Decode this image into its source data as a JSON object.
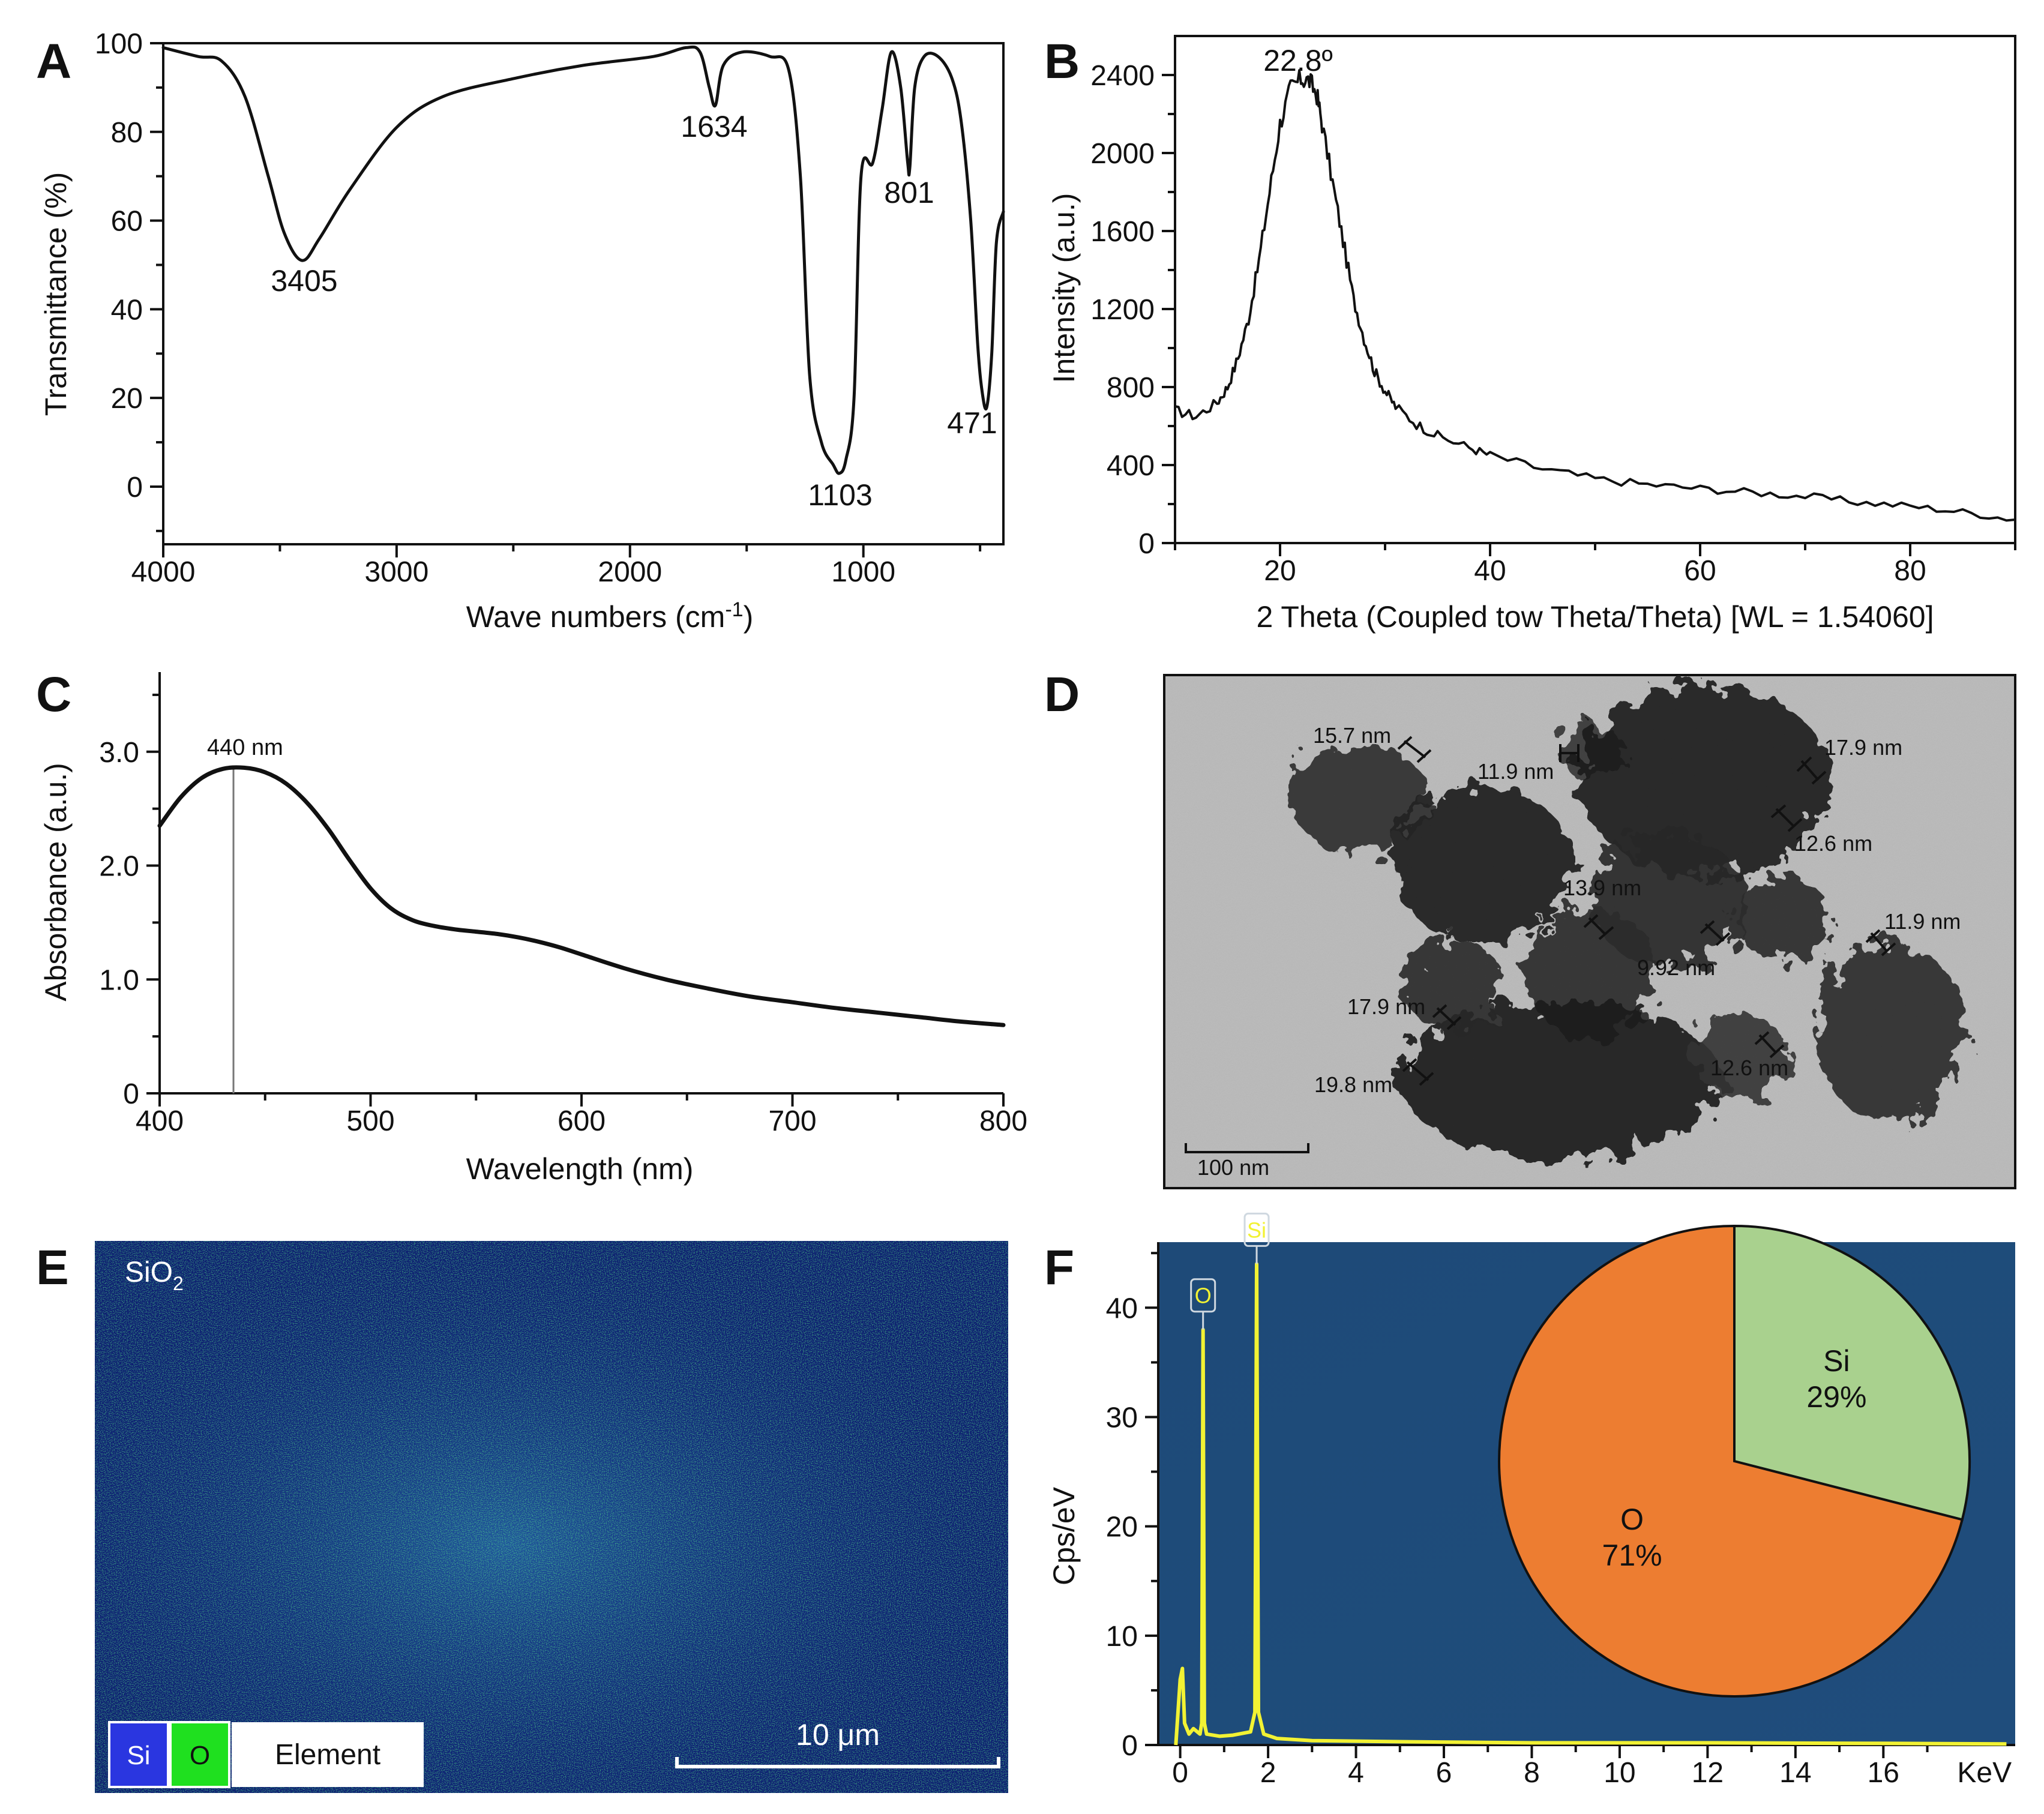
{
  "colors": {
    "ink": "#111111",
    "eds_bg": "#1e4a78",
    "eds_line": "#f2f233",
    "pie_o": "#ed7d31",
    "pie_si": "#a9d18e",
    "map_si": "#2a36e0",
    "map_o": "#1fe01f"
  },
  "panels": {
    "a": "A",
    "b": "B",
    "c": "C",
    "d": "D",
    "e": "E",
    "f": "F"
  },
  "chart_data": [
    {
      "id": "A",
      "type": "line",
      "title": "",
      "xlabel": "Wave numbers (cm⁻¹)",
      "ylabel": "Transmittance (%)",
      "xlim": [
        4000,
        400
      ],
      "ylim": [
        -13,
        100
      ],
      "xticks": [
        "4000",
        "3000",
        "2000",
        "1000"
      ],
      "yticks": [
        "100",
        "80",
        "60",
        "40",
        "20",
        "0"
      ],
      "x": [
        4000,
        3850,
        3750,
        3650,
        3550,
        3480,
        3405,
        3330,
        3200,
        3000,
        2800,
        2500,
        2200,
        1900,
        1760,
        1700,
        1660,
        1634,
        1600,
        1520,
        1400,
        1320,
        1270,
        1230,
        1180,
        1130,
        1103,
        1075,
        1040,
        1010,
        960,
        920,
        880,
        840,
        810,
        801,
        780,
        740,
        680,
        620,
        580,
        540,
        510,
        490,
        471,
        450,
        430,
        400
      ],
      "y": [
        99,
        97,
        96,
        88,
        70,
        57,
        51,
        56,
        67,
        81,
        88,
        92,
        95,
        97,
        99,
        98,
        90,
        86,
        95,
        98,
        97,
        94,
        70,
        25,
        10,
        5,
        3,
        6,
        20,
        70,
        73,
        85,
        98,
        90,
        73,
        72,
        90,
        97,
        97,
        92,
        82,
        60,
        32,
        21,
        18,
        30,
        55,
        62
      ],
      "annotations": [
        "3405",
        "1634",
        "1103",
        "801",
        "471"
      ]
    },
    {
      "id": "B",
      "type": "line",
      "title": "",
      "xlabel": "2 Theta (Coupled tow Theta/Theta)  [WL = 1.54060]",
      "ylabel": "Intensity (a.u.)",
      "xlim": [
        10,
        90
      ],
      "ylim": [
        0,
        2600
      ],
      "xticks": [
        "20",
        "40",
        "60",
        "80"
      ],
      "yticks": [
        "0",
        "400",
        "800",
        "1200",
        "1600",
        "2000",
        "2400"
      ],
      "x": [
        10,
        12,
        14,
        15,
        16,
        17,
        18,
        19,
        20,
        21,
        22,
        22.8,
        23.5,
        24,
        25,
        26,
        27,
        28,
        29,
        30,
        31,
        33,
        35,
        38,
        40,
        45,
        50,
        55,
        60,
        65,
        70,
        75,
        80,
        85,
        90
      ],
      "y": [
        680,
        650,
        720,
        800,
        950,
        1150,
        1450,
        1800,
        2150,
        2330,
        2380,
        2370,
        2300,
        2150,
        1850,
        1550,
        1250,
        1050,
        880,
        780,
        700,
        610,
        550,
        490,
        450,
        380,
        330,
        300,
        280,
        260,
        240,
        210,
        190,
        160,
        120
      ],
      "annotations": [
        "22.8º"
      ]
    },
    {
      "id": "C",
      "type": "line",
      "title": "",
      "xlabel": "Wavelength (nm)",
      "ylabel": "Absorbance (a.u.)",
      "xlim": [
        400,
        800
      ],
      "ylim": [
        0,
        3.7
      ],
      "xticks": [
        "400",
        "500",
        "600",
        "700",
        "800"
      ],
      "yticks": [
        "0",
        "1.0",
        "2.0",
        "3.0"
      ],
      "x": [
        400,
        410,
        420,
        430,
        440,
        450,
        460,
        470,
        480,
        490,
        500,
        510,
        520,
        530,
        540,
        550,
        560,
        570,
        580,
        590,
        600,
        620,
        640,
        660,
        680,
        700,
        720,
        740,
        760,
        780,
        800
      ],
      "y": [
        2.35,
        2.6,
        2.77,
        2.85,
        2.86,
        2.82,
        2.72,
        2.55,
        2.32,
        2.05,
        1.8,
        1.62,
        1.52,
        1.47,
        1.44,
        1.42,
        1.4,
        1.37,
        1.33,
        1.28,
        1.22,
        1.1,
        1.0,
        0.92,
        0.85,
        0.8,
        0.75,
        0.71,
        0.67,
        0.63,
        0.6
      ],
      "annotations": [
        "440 nm"
      ]
    },
    {
      "id": "F",
      "type": "line",
      "title": "",
      "xlabel": "KeV",
      "ylabel": "Cps/eV",
      "xlim": [
        -0.5,
        19
      ],
      "ylim": [
        0,
        46
      ],
      "xticks": [
        "0",
        "2",
        "4",
        "6",
        "8",
        "10",
        "12",
        "14",
        "16"
      ],
      "yticks": [
        "0",
        "10",
        "20",
        "30",
        "40"
      ],
      "peaks": [
        {
          "element": "O",
          "energy": 0.52,
          "value": 38
        },
        {
          "element": "Si",
          "energy": 1.74,
          "value": 44
        }
      ],
      "pie": {
        "type": "pie",
        "labels": [
          "Si",
          "O"
        ],
        "values": [
          29,
          71
        ],
        "value_labels": [
          "29%",
          "71%"
        ]
      }
    }
  ],
  "tem": {
    "labels": [
      "15.7 nm",
      "11.9 nm",
      "17.9 nm",
      "12.6 nm",
      "13.9 nm",
      "11.9 nm",
      "9.92 nm",
      "17.9 nm",
      "19.8 nm",
      "12.6 nm"
    ],
    "scale_bar": "100 nm"
  },
  "eds_map": {
    "title_main": "SiO",
    "title_sub": "2",
    "legend": [
      "Si",
      "O",
      "Element"
    ],
    "scale_bar": "10 μm"
  }
}
